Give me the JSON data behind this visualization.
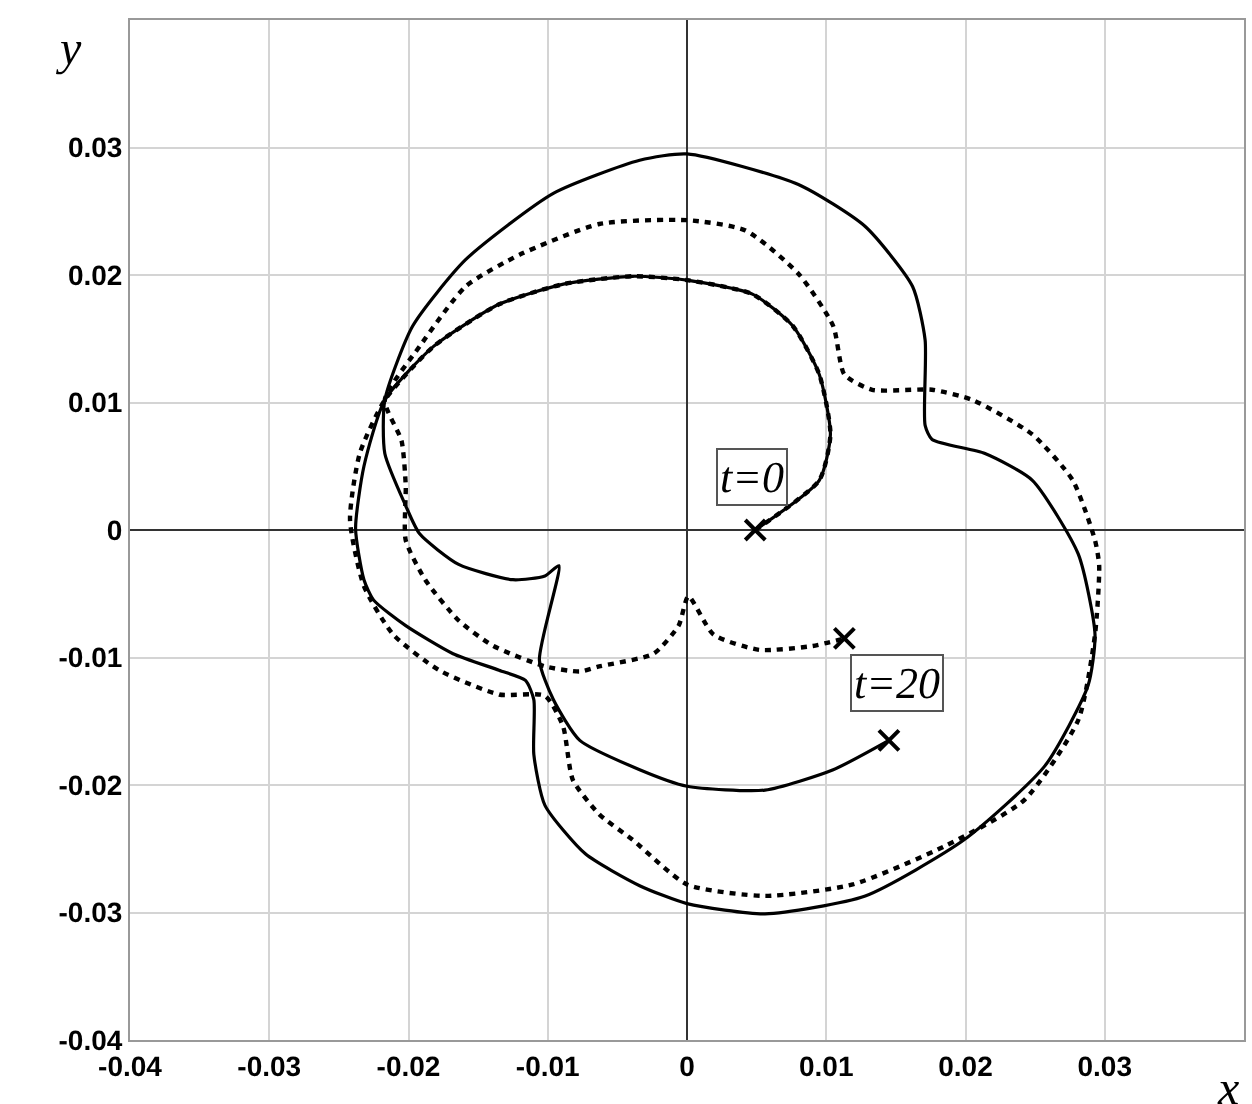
{
  "chart_data": {
    "type": "line",
    "xlabel": "x",
    "ylabel": "y",
    "xlim": [
      -0.04,
      0.04
    ],
    "ylim": [
      -0.04,
      0.04
    ],
    "xticks": [
      -0.04,
      -0.03,
      -0.02,
      -0.01,
      0,
      0.01,
      0.02,
      0.03
    ],
    "yticks": [
      -0.04,
      -0.03,
      -0.02,
      -0.01,
      0,
      0.01,
      0.02,
      0.03
    ],
    "grid": true,
    "marker": "none",
    "series": [
      {
        "color": "#000000",
        "line_style": "solid",
        "x": [
          0.0049,
          0.0095,
          0.0103,
          0.0095,
          0.0076,
          0.0047,
          0,
          -0.0039,
          -0.0088,
          -0.0135,
          -0.0182,
          -0.0217,
          -0.0232,
          -0.0238,
          -0.0232,
          -0.0225,
          -0.0202,
          -0.0168,
          -0.0135,
          -0.0116,
          -0.011,
          -0.011,
          -0.0102,
          -0.0073,
          -0.0034,
          0,
          0.0056,
          0.0128,
          0.0199,
          0.0257,
          0.0288,
          0.0293,
          0.0281,
          0.0248,
          0.0214,
          0.0176,
          0.0171,
          0.0171,
          0.0162,
          0.0128,
          0.008,
          0,
          -0.0034,
          -0.0096,
          -0.0159,
          -0.0197,
          -0.0217,
          -0.0217,
          -0.0202,
          -0.0192,
          -0.0164,
          -0.0125,
          -0.0102,
          -0.0092,
          -0.0106,
          -0.0096,
          -0.0077,
          -0.0034,
          0,
          0.0056,
          0.0105,
          0.0145
        ],
        "values": [
          0,
          0.0039,
          0.0075,
          0.0122,
          0.016,
          0.0185,
          0.0196,
          0.0199,
          0.0193,
          0.0177,
          0.0144,
          0.0102,
          0.005,
          0.0001,
          -0.0039,
          -0.0055,
          -0.0075,
          -0.0097,
          -0.011,
          -0.0118,
          -0.0133,
          -0.0176,
          -0.0216,
          -0.0254,
          -0.0279,
          -0.0293,
          -0.0301,
          -0.0287,
          -0.0243,
          -0.0185,
          -0.0122,
          -0.0082,
          -0.0019,
          0.0039,
          0.006,
          0.0071,
          0.0082,
          0.0149,
          0.0191,
          0.0238,
          0.0271,
          0.0295,
          0.029,
          0.0264,
          0.0212,
          0.016,
          0.0102,
          0.006,
          0.0019,
          -0.0003,
          -0.0027,
          -0.0039,
          -0.0036,
          -0.0028,
          -0.0102,
          -0.0133,
          -0.0165,
          -0.0188,
          -0.0201,
          -0.0204,
          -0.0188,
          -0.0165
        ]
      },
      {
        "color": "#000000",
        "line_style": "dotted",
        "x": [
          0.0049,
          0.0095,
          0.0103,
          0.0095,
          0.0076,
          0.0047,
          0,
          -0.0039,
          -0.0088,
          -0.0135,
          -0.0182,
          -0.0217,
          -0.0235,
          -0.0242,
          -0.0232,
          -0.0211,
          -0.0178,
          -0.0135,
          -0.0102,
          -0.0089,
          -0.0082,
          -0.0063,
          -0.0039,
          0,
          0.0056,
          0.0119,
          0.0185,
          0.0242,
          0.0281,
          0.0293,
          0.0296,
          0.0293,
          0.0277,
          0.0248,
          0.0205,
          0.0176,
          0.0133,
          0.0113,
          0.0105,
          0.008,
          0.0042,
          0,
          -0.0063,
          -0.012,
          -0.0159,
          -0.0192,
          -0.0217,
          -0.0205,
          -0.0202,
          -0.0202,
          -0.0188,
          -0.0164,
          -0.0139,
          -0.0102,
          -0.0077,
          -0.0063,
          -0.0024,
          -0.0006,
          0.0001,
          0.0019,
          0.0052,
          0.009,
          0.0113
        ],
        "values": [
          0,
          0.0039,
          0.0075,
          0.0122,
          0.016,
          0.0185,
          0.0196,
          0.0199,
          0.0193,
          0.0177,
          0.0144,
          0.0102,
          0.006,
          0.0008,
          -0.0044,
          -0.0082,
          -0.011,
          -0.0129,
          -0.013,
          -0.0154,
          -0.0196,
          -0.0223,
          -0.0243,
          -0.0278,
          -0.0287,
          -0.0278,
          -0.0248,
          -0.0212,
          -0.0149,
          -0.0082,
          -0.0028,
          -0.0008,
          0.0039,
          0.0075,
          0.0102,
          0.011,
          0.011,
          0.0122,
          0.016,
          0.0201,
          0.0235,
          0.0243,
          0.024,
          0.0216,
          0.0191,
          0.0144,
          0.0102,
          0.007,
          0.0035,
          -0.0008,
          -0.0039,
          -0.0071,
          -0.0091,
          -0.0107,
          -0.0111,
          -0.0107,
          -0.0097,
          -0.0075,
          -0.0052,
          -0.0082,
          -0.0094,
          -0.0091,
          -0.0085
        ]
      },
      {
        "type": "scatter",
        "marker": "cross",
        "color": "#000000",
        "x": [
          0.0049,
          0.0145,
          0.0113
        ],
        "values": [
          0,
          -0.0165,
          -0.0085
        ]
      }
    ],
    "annotations": [
      {
        "text": "t=0",
        "x": 0.0049,
        "y": 0
      },
      {
        "text": "t=20",
        "x": 0.0145,
        "y": -0.0165
      }
    ]
  }
}
